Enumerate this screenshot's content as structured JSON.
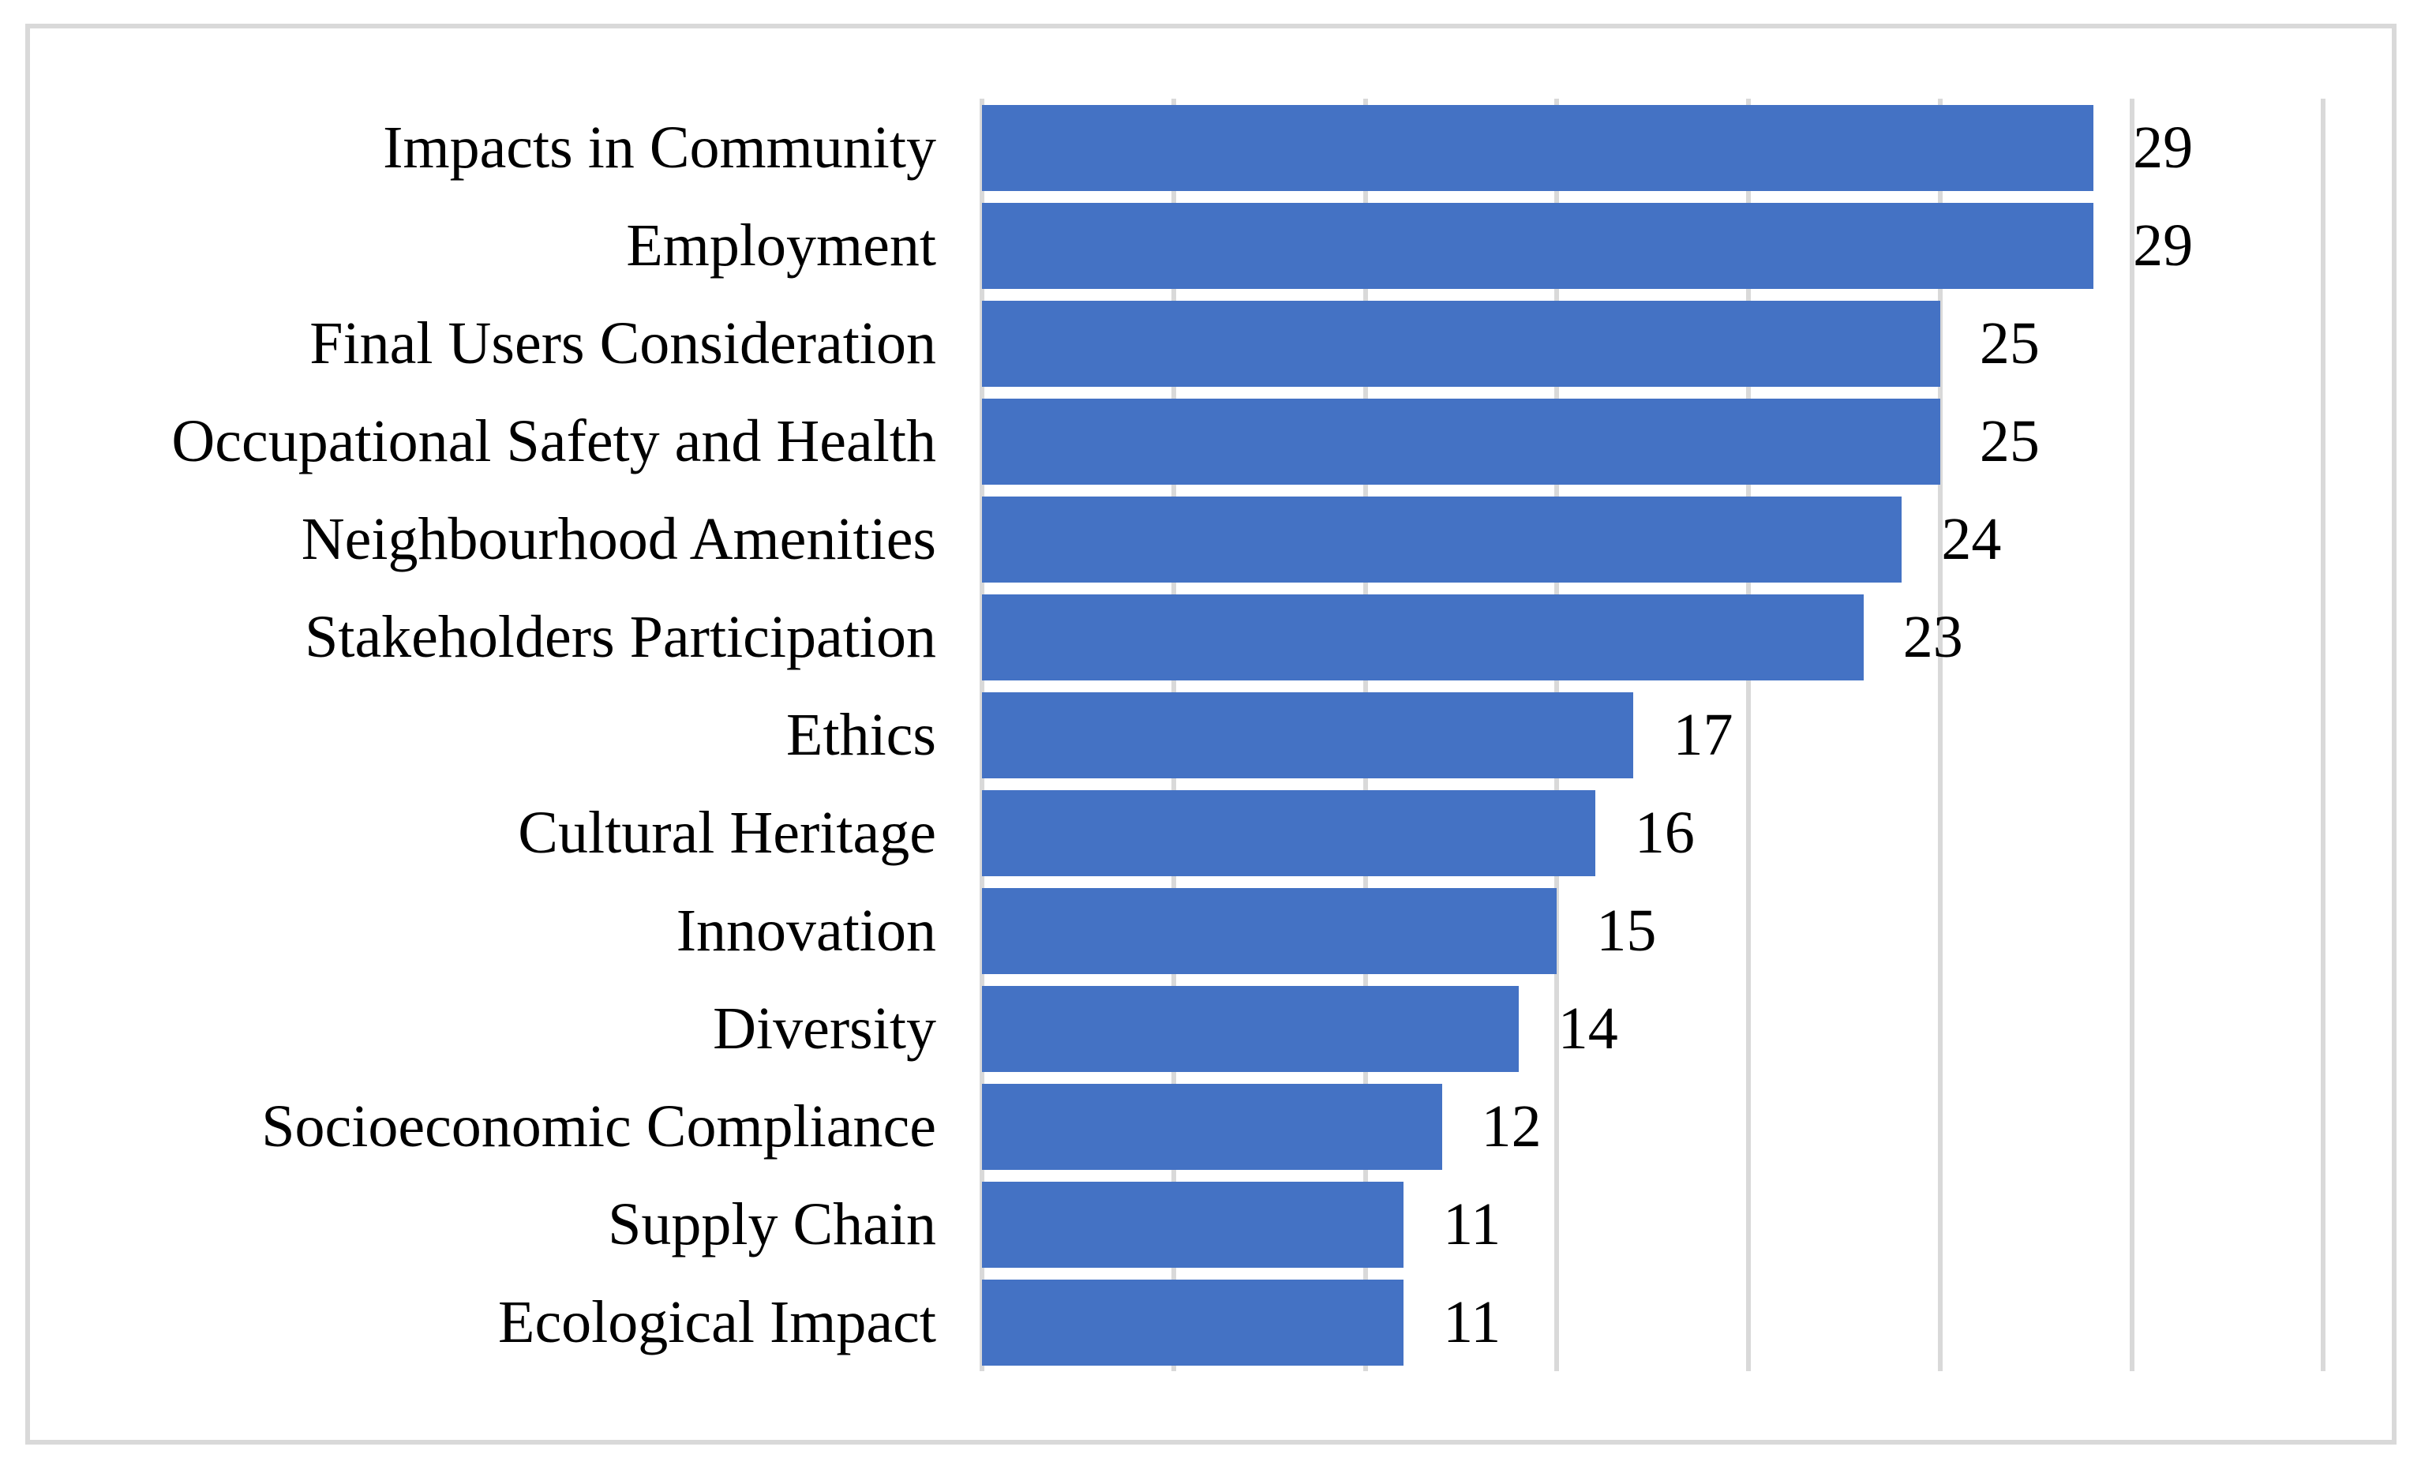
{
  "chart_data": {
    "type": "bar",
    "orientation": "horizontal",
    "title": "",
    "xlabel": "",
    "ylabel": "",
    "categories": [
      "Impacts in Community",
      "Employment",
      "Final Users Consideration",
      "Occupational Safety and Health",
      "Neighbourhood Amenities",
      "Stakeholders Participation",
      "Ethics",
      "Cultural Heritage",
      "Innovation",
      "Diversity",
      "Socioeconomic Compliance",
      "Supply Chain",
      "Ecological Impact"
    ],
    "values": [
      29,
      29,
      25,
      25,
      24,
      23,
      17,
      16,
      15,
      14,
      12,
      11,
      11
    ],
    "value_labels_shown": true,
    "axis_tick_labels_shown": false,
    "xlim": [
      0,
      36
    ],
    "x_gridlines": [
      0,
      5,
      10,
      15,
      20,
      25,
      30,
      35
    ],
    "grid": "vertical",
    "legend": "none"
  },
  "colors": {
    "bar_fill": "#4472C4",
    "gridline": "#D9D9D9",
    "chart_border": "#D9D9D9",
    "text": "#000000",
    "background": "#FFFFFF"
  }
}
